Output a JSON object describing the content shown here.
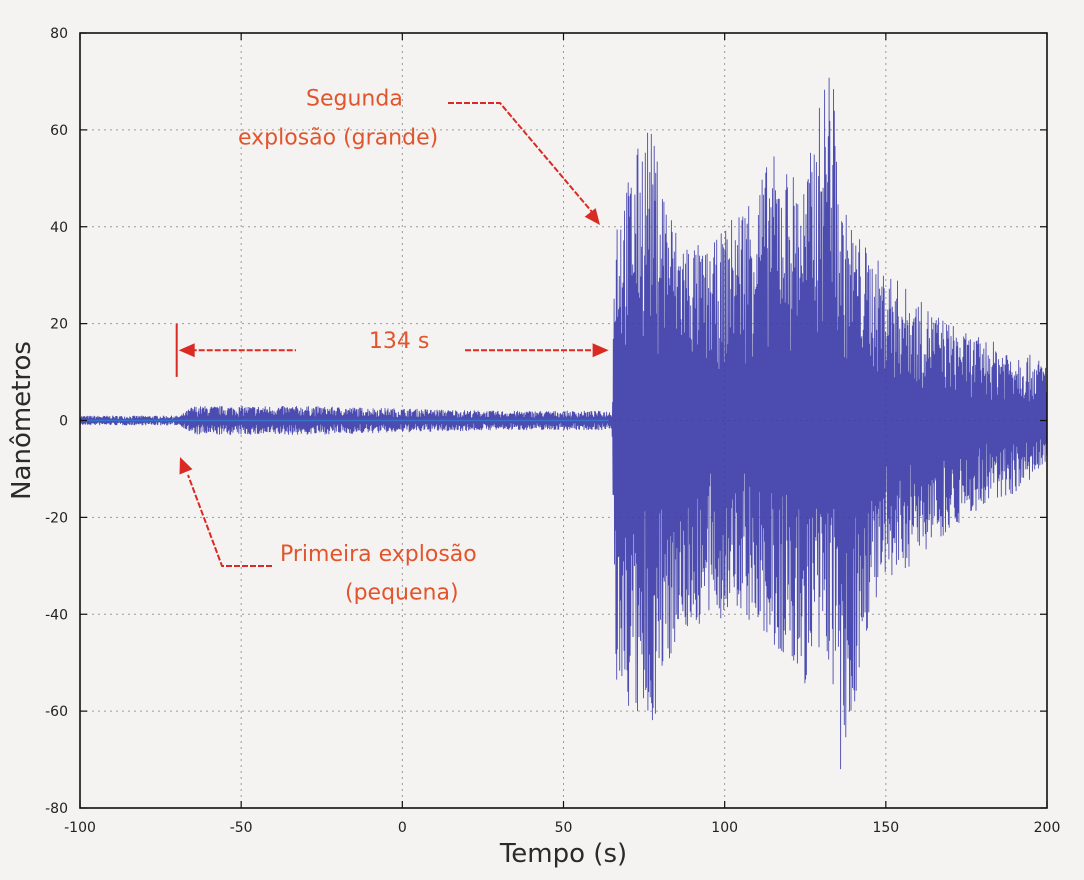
{
  "chart_data": {
    "type": "line",
    "title": "",
    "xlabel": "Tempo (s)",
    "ylabel": "Nanômetros",
    "xlim": [
      -100,
      200
    ],
    "ylim": [
      -80,
      80
    ],
    "xticks": [
      -100,
      -50,
      0,
      50,
      100,
      150,
      200
    ],
    "yticks": [
      -80,
      -60,
      -40,
      -20,
      0,
      20,
      40,
      60,
      80
    ],
    "grid": true,
    "series": [
      {
        "color": "#3a3aa8",
        "envelope_note_x": [
          -100,
          -69,
          -65,
          -30,
          0,
          30,
          65,
          66,
          70,
          76,
          85,
          95,
          105,
          115,
          125,
          133,
          136,
          145,
          160,
          175,
          190,
          200
        ],
        "x": [
          -100,
          -69,
          -65,
          -30,
          0,
          30,
          65,
          66,
          70,
          76,
          85,
          95,
          105,
          115,
          125,
          133,
          136,
          145,
          160,
          175,
          190,
          200
        ],
        "upper": [
          1,
          1,
          3,
          3,
          2.5,
          2,
          2,
          45,
          50,
          63,
          40,
          35,
          45,
          55,
          50,
          78,
          45,
          35,
          25,
          18,
          15,
          12
        ],
        "lower": [
          -1,
          -1,
          -3,
          -3,
          -2.5,
          -2,
          -2,
          -55,
          -60,
          -67,
          -45,
          -42,
          -40,
          -48,
          -55,
          -50,
          -78,
          -40,
          -28,
          -20,
          -15,
          -10
        ]
      }
    ],
    "annotations": [
      {
        "text": "Segunda",
        "x": 10,
        "y": 65
      },
      {
        "text": "explosão (grande)",
        "x": 10,
        "y": 57
      },
      {
        "text": "134 s",
        "x": -1,
        "y": 15
      },
      {
        "text": "Primeira explosão",
        "x": 0,
        "y": -29
      },
      {
        "text": "(pequena)",
        "x": -10,
        "y": -37
      }
    ],
    "annotation_color": "#e2552c",
    "arrow_color": "#d92a24",
    "interval": {
      "start": -70,
      "end": 64,
      "label": "134 s"
    }
  }
}
